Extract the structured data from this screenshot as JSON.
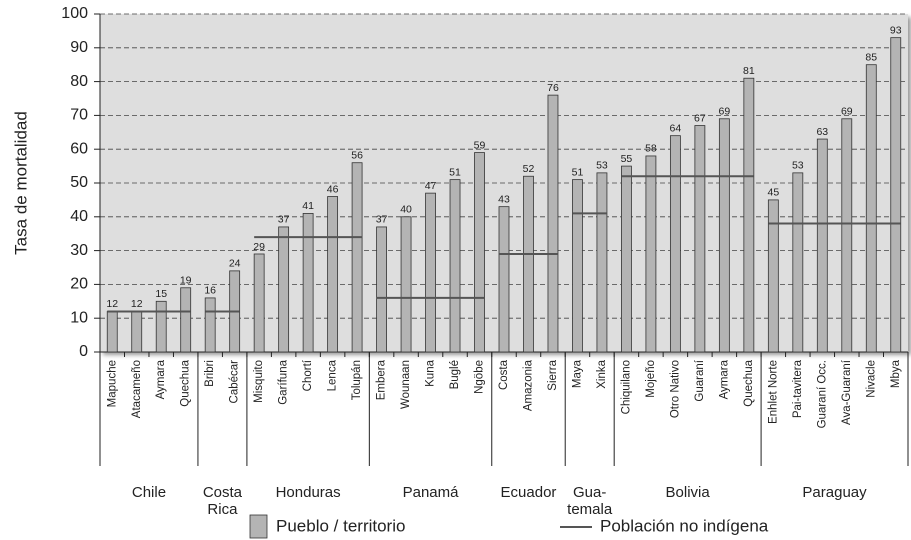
{
  "chart_data": {
    "type": "grouped-bar",
    "ylabel": "Tasa de mortalidad",
    "ylim": [
      0,
      100
    ],
    "yticks": [
      0,
      10,
      20,
      30,
      40,
      50,
      60,
      70,
      80,
      90,
      100
    ],
    "grid": true,
    "legend": "bottom",
    "series": [
      {
        "name": "Pueblo / territorio",
        "color": "#b4b4b4"
      },
      {
        "name": "Población no indígena",
        "color": "#555555"
      }
    ],
    "groups": [
      {
        "label": [
          "Chile"
        ],
        "categories": [
          "Mapuche",
          "Atacameño",
          "Aymara",
          "Quechua"
        ],
        "values": [
          12,
          12,
          15,
          19
        ],
        "reference": 12
      },
      {
        "label": [
          "Costa",
          "Rica"
        ],
        "categories": [
          "Bribri",
          "Cabécar"
        ],
        "values": [
          16,
          24
        ],
        "reference": 12
      },
      {
        "label": [
          "Honduras"
        ],
        "categories": [
          "Misquito",
          "Garífuna",
          "Chortí",
          "Lenca",
          "Tolupán"
        ],
        "values": [
          29,
          37,
          41,
          46,
          56
        ],
        "reference": 34
      },
      {
        "label": [
          "Panamá"
        ],
        "categories": [
          "Embera",
          "Wounaan",
          "Kuna",
          "Buglé",
          "Ngöbe"
        ],
        "values": [
          37,
          40,
          47,
          51,
          59
        ],
        "reference": 16
      },
      {
        "label": [
          "Ecuador"
        ],
        "categories": [
          "Costa",
          "Amazonia",
          "Sierra"
        ],
        "values": [
          43,
          52,
          76
        ],
        "reference": 29
      },
      {
        "label": [
          "Gua-",
          "temala"
        ],
        "categories": [
          "Maya",
          "Xinka"
        ],
        "values": [
          51,
          53
        ],
        "reference": 41
      },
      {
        "label": [
          "Bolivia"
        ],
        "categories": [
          "Chiquilano",
          "Mojeño",
          "Otro Nativo",
          "Guaraní",
          "Aymara",
          "Quechua"
        ],
        "values": [
          55,
          58,
          64,
          67,
          69,
          81
        ],
        "reference": 52
      },
      {
        "label": [
          "Paraguay"
        ],
        "categories": [
          "Enhlet Norte",
          "Pai-tavitera",
          "Guaraní Occ.",
          "Ava-Guaraní",
          "Nivacle",
          "Mbya"
        ],
        "values": [
          45,
          53,
          63,
          69,
          85,
          93
        ],
        "reference": 38
      }
    ]
  }
}
